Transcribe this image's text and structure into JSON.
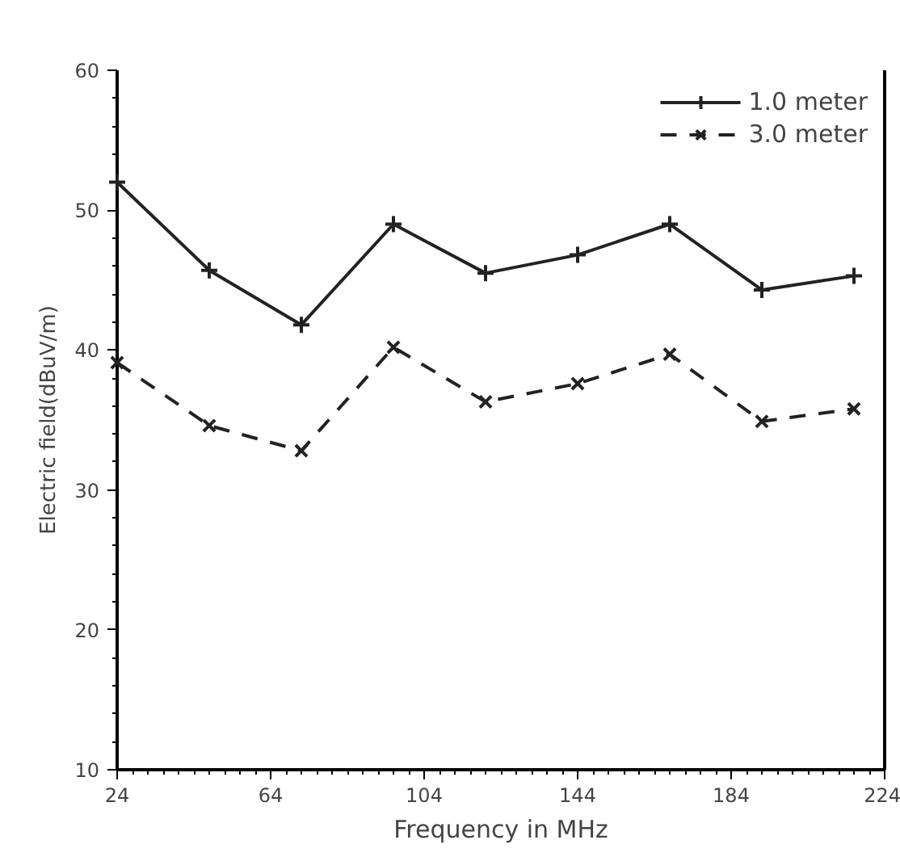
{
  "chart_data": {
    "type": "line",
    "xlabel": "Frequency in MHz",
    "ylabel": "Electric field(dBuV/m)",
    "x": [
      24,
      48,
      72,
      96,
      120,
      144,
      168,
      192,
      216
    ],
    "series": [
      {
        "name": "1.0 meter",
        "color": "#222222",
        "values": [
          52.0,
          45.7,
          41.8,
          49.0,
          45.5,
          46.8,
          49.0,
          44.3,
          45.3
        ],
        "marker": "cross",
        "line_style": "solid"
      },
      {
        "name": "3.0 meter",
        "color": "#222222",
        "values": [
          39.1,
          34.6,
          32.8,
          40.2,
          36.3,
          37.6,
          39.7,
          34.9,
          35.8
        ],
        "marker": "x",
        "line_style": "dashed"
      }
    ],
    "xlim": [
      24,
      224
    ],
    "ylim": [
      10,
      60
    ],
    "xticks": [
      24,
      64,
      104,
      144,
      184,
      224
    ],
    "yticks": [
      10,
      20,
      30,
      40,
      50,
      60
    ],
    "grid": false,
    "legend": "top right"
  }
}
